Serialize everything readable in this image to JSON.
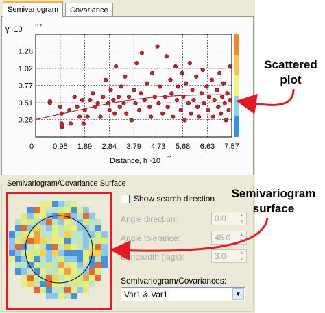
{
  "tabs": [
    {
      "label": "Semivariogram",
      "active": true
    },
    {
      "label": "Covariance",
      "active": false
    }
  ],
  "chart_data": {
    "type": "scatter",
    "ylabel_prefix": "γ ·10",
    "ylabel_exp": "-12",
    "xlabel_prefix": "Distance, h ·10",
    "xlabel_exp": "-3",
    "y_ticks": [
      "0.26",
      "0.51",
      "0.77",
      "1.02",
      "1.28"
    ],
    "y_tick_values": [
      0.26,
      0.51,
      0.77,
      1.02,
      1.28
    ],
    "x_ticks": [
      "0",
      "0.95",
      "1.89",
      "2.84",
      "3.79",
      "4.73",
      "5.68",
      "6.63",
      "7.57"
    ],
    "x_tick_values": [
      0,
      0.95,
      1.89,
      2.84,
      3.79,
      4.73,
      5.68,
      6.63,
      7.57
    ],
    "xlim": [
      0,
      7.57
    ],
    "ylim": [
      0,
      1.53
    ],
    "grid": true,
    "colorbar": [
      "#3c8ed8",
      "#8fd0e0",
      "#f4f08a",
      "#f6c64c",
      "#e88a2e"
    ],
    "points": [
      [
        0.55,
        0.51
      ],
      [
        0.55,
        0.53
      ],
      [
        0.95,
        0.45
      ],
      [
        1.0,
        0.2
      ],
      [
        1.0,
        0.35
      ],
      [
        1.02,
        0.15
      ],
      [
        1.3,
        0.4
      ],
      [
        1.35,
        0.2
      ],
      [
        1.5,
        0.6
      ],
      [
        1.6,
        0.45
      ],
      [
        1.7,
        0.3
      ],
      [
        1.8,
        0.55
      ],
      [
        1.85,
        0.2
      ],
      [
        1.9,
        0.4
      ],
      [
        2.0,
        0.3
      ],
      [
        2.1,
        0.55
      ],
      [
        2.2,
        0.65
      ],
      [
        2.3,
        0.45
      ],
      [
        2.4,
        0.5
      ],
      [
        2.5,
        0.3
      ],
      [
        2.6,
        0.6
      ],
      [
        2.7,
        0.85
      ],
      [
        2.8,
        0.5
      ],
      [
        2.85,
        0.4
      ],
      [
        2.9,
        0.7
      ],
      [
        3.0,
        0.55
      ],
      [
        3.05,
        0.35
      ],
      [
        3.1,
        1.05
      ],
      [
        3.2,
        0.6
      ],
      [
        3.25,
        0.45
      ],
      [
        3.3,
        0.75
      ],
      [
        3.4,
        0.5
      ],
      [
        3.45,
        0.9
      ],
      [
        3.5,
        0.35
      ],
      [
        3.6,
        0.6
      ],
      [
        3.7,
        0.25
      ],
      [
        3.8,
        0.7
      ],
      [
        3.85,
        0.5
      ],
      [
        3.9,
        1.1
      ],
      [
        4.0,
        0.4
      ],
      [
        4.05,
        0.65
      ],
      [
        4.1,
        1.25
      ],
      [
        4.2,
        0.55
      ],
      [
        4.3,
        0.8
      ],
      [
        4.4,
        0.45
      ],
      [
        4.45,
        0.3
      ],
      [
        4.5,
        0.95
      ],
      [
        4.6,
        0.6
      ],
      [
        4.7,
        1.35
      ],
      [
        4.75,
        0.5
      ],
      [
        4.8,
        0.75
      ],
      [
        4.9,
        0.35
      ],
      [
        5.0,
        0.6
      ],
      [
        5.05,
        1.2
      ],
      [
        5.1,
        0.45
      ],
      [
        5.2,
        0.85
      ],
      [
        5.25,
        0.65
      ],
      [
        5.3,
        0.3
      ],
      [
        5.4,
        1.05
      ],
      [
        5.45,
        0.55
      ],
      [
        5.5,
        0.75
      ],
      [
        5.6,
        0.4
      ],
      [
        5.65,
        0.95
      ],
      [
        5.7,
        0.6
      ],
      [
        5.75,
        0.25
      ],
      [
        5.8,
        0.8
      ],
      [
        5.9,
        0.5
      ],
      [
        5.95,
        1.1
      ],
      [
        6.0,
        0.35
      ],
      [
        6.05,
        0.7
      ],
      [
        6.1,
        0.55
      ],
      [
        6.2,
        0.9
      ],
      [
        6.25,
        0.45
      ],
      [
        6.3,
        0.3
      ],
      [
        6.4,
        0.65
      ],
      [
        6.45,
        1.0
      ],
      [
        6.5,
        0.5
      ],
      [
        6.6,
        0.75
      ],
      [
        6.65,
        0.4
      ],
      [
        6.7,
        0.6
      ],
      [
        6.8,
        0.85
      ],
      [
        6.85,
        0.3
      ],
      [
        6.9,
        0.55
      ],
      [
        7.0,
        0.7
      ],
      [
        7.05,
        0.45
      ],
      [
        7.1,
        0.95
      ],
      [
        7.15,
        0.35
      ],
      [
        7.2,
        0.6
      ],
      [
        7.25,
        0.8
      ],
      [
        7.3,
        0.5
      ],
      [
        7.35,
        0.25
      ],
      [
        7.4,
        0.65
      ],
      [
        7.45,
        0.4
      ],
      [
        7.5,
        1.05
      ],
      [
        7.5,
        0.55
      ]
    ],
    "model_curve": [
      [
        0,
        0.26
      ],
      [
        0.95,
        0.34
      ],
      [
        1.89,
        0.42
      ],
      [
        2.84,
        0.5
      ],
      [
        3.79,
        0.56
      ],
      [
        4.73,
        0.6
      ],
      [
        5.68,
        0.62
      ],
      [
        6.63,
        0.63
      ],
      [
        7.57,
        0.63
      ]
    ]
  },
  "surface_group_label": "Semivariogram/Covariance Surface",
  "surface_colors": [
    "#4a90d9",
    "#8cc6e8",
    "#bfe3c4",
    "#e6ef86",
    "#f2d24e",
    "#f0a23c",
    "#e36a2c",
    "#d8e98a"
  ],
  "show_search_direction": {
    "label": "Show search direction",
    "checked": false
  },
  "angle_direction": {
    "label": "Angle direction:",
    "value": "0.0"
  },
  "angle_tolerance": {
    "label": "Angle tolerance:",
    "value": "45.0"
  },
  "bandwidth": {
    "label": "Bandwidth (lags):",
    "value": "3.0"
  },
  "covariances_label": "Semivariogram/Covariances:",
  "covariances_select": {
    "value": "Var1 & Var1"
  },
  "annotations": {
    "scattered_plot": "Scattered plot",
    "surface": "Semivariogram surface",
    "accent": "#e21b23"
  }
}
